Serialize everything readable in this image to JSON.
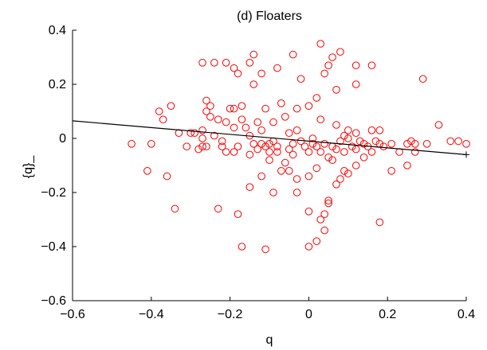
{
  "colors": {
    "background": "#ffffff",
    "axis": "#000000",
    "points": "#ff0000",
    "fit_line": "#000000"
  },
  "chart_data": {
    "type": "scatter",
    "title": "(d) Floaters",
    "xlabel": "q",
    "ylabel": "{q}_",
    "xlim": [
      -0.6,
      0.4
    ],
    "ylim": [
      -0.6,
      0.4
    ],
    "xticks": [
      -0.6,
      -0.4,
      -0.2,
      0,
      0.2,
      0.4
    ],
    "xtick_labels": [
      "−0.6",
      "−0.4",
      "−0.2",
      "0",
      "0.2",
      "0.4"
    ],
    "yticks": [
      -0.6,
      -0.4,
      -0.2,
      0,
      0.2,
      0.4
    ],
    "ytick_labels": [
      "−0.6",
      "−0.4",
      "−0.2",
      "0",
      "0.2",
      "0.4"
    ],
    "grid": false,
    "marker": "open-circle",
    "series": [
      {
        "color": "#ff0000",
        "points": [
          [
            -0.45,
            -0.02
          ],
          [
            -0.41,
            -0.12
          ],
          [
            -0.4,
            -0.02
          ],
          [
            -0.38,
            0.1
          ],
          [
            -0.37,
            0.07
          ],
          [
            -0.36,
            -0.14
          ],
          [
            -0.35,
            0.12
          ],
          [
            -0.34,
            -0.26
          ],
          [
            -0.33,
            0.02
          ],
          [
            -0.31,
            -0.03
          ],
          [
            -0.3,
            0.02
          ],
          [
            -0.29,
            0.02
          ],
          [
            -0.28,
            -0.04
          ],
          [
            -0.27,
            0.03
          ],
          [
            -0.27,
            0.0
          ],
          [
            -0.26,
            0.14
          ],
          [
            -0.26,
            0.1
          ],
          [
            -0.25,
            0.12
          ],
          [
            -0.25,
            0.08
          ],
          [
            -0.26,
            -0.03
          ],
          [
            -0.27,
            -0.03
          ],
          [
            -0.24,
            0.01
          ],
          [
            -0.23,
            0.07
          ],
          [
            -0.22,
            -0.01
          ],
          [
            -0.22,
            -0.03
          ],
          [
            -0.21,
            -0.05
          ],
          [
            -0.21,
            0.06
          ],
          [
            -0.2,
            0.11
          ],
          [
            -0.19,
            0.11
          ],
          [
            -0.19,
            0.04
          ],
          [
            -0.19,
            -0.05
          ],
          [
            -0.18,
            -0.03
          ],
          [
            -0.17,
            0.07
          ],
          [
            -0.17,
            0.12
          ],
          [
            -0.16,
            0.04
          ],
          [
            -0.15,
            0.01
          ],
          [
            -0.15,
            -0.06
          ],
          [
            -0.14,
            -0.02
          ],
          [
            -0.13,
            -0.04
          ],
          [
            -0.13,
            0.06
          ],
          [
            -0.12,
            -0.02
          ],
          [
            -0.12,
            0.03
          ],
          [
            -0.11,
            0.11
          ],
          [
            -0.1,
            -0.02
          ],
          [
            -0.1,
            -0.05
          ],
          [
            -0.09,
            -0.01
          ],
          [
            -0.09,
            0.06
          ],
          [
            -0.08,
            -0.03
          ],
          [
            -0.07,
            0.13
          ],
          [
            -0.06,
            0.08
          ],
          [
            -0.05,
            0.02
          ],
          [
            -0.05,
            -0.04
          ],
          [
            -0.04,
            -0.06
          ],
          [
            -0.03,
            0.03
          ],
          [
            -0.02,
            -0.01
          ],
          [
            -0.01,
            -0.03
          ],
          [
            0.0,
            -0.05
          ],
          [
            0.01,
            -0.02
          ],
          [
            0.02,
            -0.03
          ],
          [
            0.03,
            -0.05
          ],
          [
            0.04,
            -0.02
          ],
          [
            0.05,
            -0.07
          ],
          [
            0.06,
            -0.03
          ],
          [
            0.07,
            -0.04
          ],
          [
            0.08,
            -0.01
          ],
          [
            0.09,
            -0.05
          ],
          [
            0.1,
            0.0
          ],
          [
            0.11,
            -0.03
          ],
          [
            0.12,
            -0.04
          ],
          [
            0.13,
            -0.01
          ],
          [
            0.14,
            -0.02
          ],
          [
            0.15,
            -0.03
          ],
          [
            0.16,
            -0.05
          ],
          [
            0.17,
            -0.01
          ],
          [
            0.18,
            -0.02
          ],
          [
            0.19,
            -0.03
          ],
          [
            0.21,
            -0.02
          ],
          [
            0.23,
            -0.05
          ],
          [
            0.25,
            -0.02
          ],
          [
            0.26,
            -0.01
          ],
          [
            0.27,
            -0.02
          ],
          [
            0.3,
            -0.02
          ],
          [
            0.33,
            0.05
          ],
          [
            0.36,
            -0.01
          ],
          [
            0.38,
            -0.01
          ],
          [
            0.4,
            -0.02
          ],
          [
            0.1,
            0.03
          ],
          [
            0.12,
            0.02
          ],
          [
            0.14,
            -0.07
          ],
          [
            0.16,
            0.03
          ],
          [
            0.18,
            0.03
          ],
          [
            -0.08,
            -0.05
          ],
          [
            -0.06,
            -0.09
          ],
          [
            -0.07,
            -0.12
          ],
          [
            -0.09,
            -0.2
          ],
          [
            -0.03,
            -0.15
          ],
          [
            0.0,
            -0.27
          ],
          [
            0.02,
            -0.38
          ],
          [
            0.03,
            -0.3
          ],
          [
            0.05,
            -0.24
          ],
          [
            0.05,
            -0.23
          ],
          [
            0.04,
            -0.28
          ],
          [
            0.08,
            -0.15
          ],
          [
            0.09,
            -0.12
          ],
          [
            -0.23,
            -0.26
          ],
          [
            -0.18,
            -0.28
          ],
          [
            -0.17,
            -0.4
          ],
          [
            -0.11,
            -0.41
          ],
          [
            0.0,
            -0.4
          ],
          [
            0.04,
            -0.34
          ],
          [
            0.18,
            -0.31
          ],
          [
            -0.27,
            0.28
          ],
          [
            -0.24,
            0.28
          ],
          [
            -0.19,
            0.26
          ],
          [
            -0.15,
            0.28
          ],
          [
            -0.14,
            0.31
          ],
          [
            -0.12,
            0.24
          ],
          [
            -0.14,
            0.2
          ],
          [
            -0.18,
            0.24
          ],
          [
            -0.21,
            0.28
          ],
          [
            -0.08,
            0.26
          ],
          [
            -0.04,
            0.31
          ],
          [
            -0.02,
            0.22
          ],
          [
            0.03,
            0.35
          ],
          [
            0.04,
            0.24
          ],
          [
            0.05,
            0.27
          ],
          [
            0.06,
            0.3
          ],
          [
            0.08,
            0.32
          ],
          [
            0.12,
            0.27
          ],
          [
            0.16,
            0.27
          ],
          [
            0.29,
            0.22
          ],
          [
            0.12,
            0.2
          ],
          [
            0.07,
            0.18
          ],
          [
            -0.03,
            0.11
          ],
          [
            0.0,
            0.12
          ],
          [
            0.03,
            0.07
          ],
          [
            0.07,
            0.05
          ],
          [
            0.02,
            0.15
          ],
          [
            -0.15,
            -0.18
          ],
          [
            -0.12,
            -0.14
          ],
          [
            -0.1,
            -0.08
          ],
          [
            -0.05,
            -0.12
          ],
          [
            -0.03,
            -0.2
          ],
          [
            0.0,
            -0.14
          ],
          [
            0.02,
            -0.11
          ],
          [
            0.06,
            -0.08
          ],
          [
            0.07,
            -0.17
          ],
          [
            0.1,
            -0.13
          ],
          [
            0.12,
            -0.1
          ],
          [
            0.21,
            -0.12
          ],
          [
            0.25,
            -0.1
          ],
          [
            0.27,
            -0.05
          ],
          [
            -0.11,
            -0.03
          ],
          [
            -0.04,
            -0.02
          ],
          [
            0.01,
            0.0
          ],
          [
            0.09,
            0.01
          ]
        ]
      }
    ],
    "fit_line": {
      "x": [
        -0.6,
        0.4
      ],
      "y": [
        0.065,
        -0.06
      ]
    }
  }
}
